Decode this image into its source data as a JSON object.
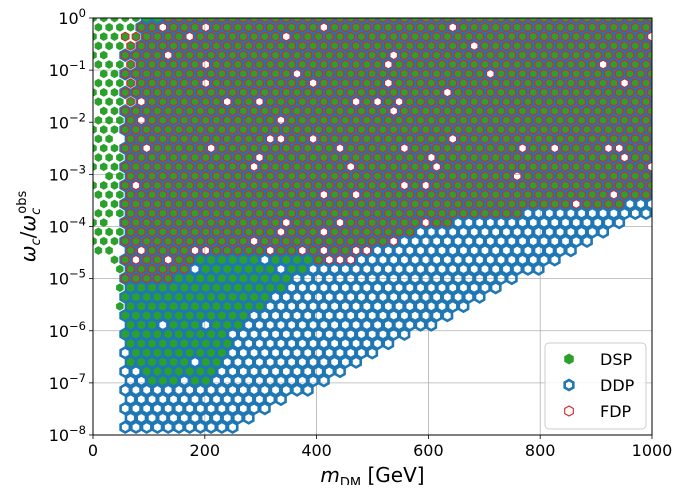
{
  "chart_data": {
    "type": "scatter",
    "subtype": "hexbin",
    "title": "",
    "xlabel": "m_DM [GeV]",
    "xlabel_parts": {
      "main": "m",
      "sub": "DM",
      "unit": " [GeV]"
    },
    "ylabel": "ω_c/ω_c^obs",
    "ylabel_parts": {
      "omega": "ω",
      "sub": "c",
      "slash": "/",
      "sup": "obs"
    },
    "xlim": [
      0,
      1000
    ],
    "ylim": [
      1e-08,
      1
    ],
    "yscale": "log",
    "grid": true,
    "legend_position": "lower-right",
    "x_ticks": [
      {
        "value": 0,
        "label": "0"
      },
      {
        "value": 200,
        "label": "200"
      },
      {
        "value": 400,
        "label": "400"
      },
      {
        "value": 600,
        "label": "600"
      },
      {
        "value": 800,
        "label": "800"
      },
      {
        "value": 1000,
        "label": "1000"
      }
    ],
    "y_ticks": [
      {
        "exp": 0,
        "base": "10",
        "sup": "0"
      },
      {
        "exp": -1,
        "base": "10",
        "sup": "−1"
      },
      {
        "exp": -2,
        "base": "10",
        "sup": "−2"
      },
      {
        "exp": -3,
        "base": "10",
        "sup": "−3"
      },
      {
        "exp": -4,
        "base": "10",
        "sup": "−4"
      },
      {
        "exp": -5,
        "base": "10",
        "sup": "−5"
      },
      {
        "exp": -6,
        "base": "10",
        "sup": "−6"
      },
      {
        "exp": -7,
        "base": "10",
        "sup": "−7"
      },
      {
        "exp": -8,
        "base": "10",
        "sup": "−8"
      }
    ],
    "series": [
      {
        "name": "DDP",
        "marker": "hollow-hexagon",
        "color": "#1f77b4",
        "region": {
          "x_range": [
            55,
            1000
          ],
          "top_boundary": [
            [
              55,
              0.7
            ],
            [
              70,
              0.01
            ],
            [
              80,
              1.0
            ],
            [
              1000,
              1.0
            ]
          ],
          "bottom_boundary": [
            [
              55,
              1e-08
            ],
            [
              230,
              1e-08
            ],
            [
              1000,
              0.0002
            ]
          ]
        }
      },
      {
        "name": "DSP",
        "marker": "filled-hexagon",
        "color": "#2ca02c",
        "region": {
          "x_range": [
            0,
            1000
          ],
          "top_boundary": [
            [
              0,
              1.0
            ],
            [
              1000,
              1.0
            ]
          ],
          "bottom_boundary": [
            [
              20,
              3e-05
            ],
            [
              40,
              1e-05
            ],
            [
              60,
              3e-07
            ],
            [
              100,
              1e-07
            ],
            [
              200,
              1e-07
            ],
            [
              300,
              3e-06
            ],
            [
              400,
              2e-05
            ],
            [
              600,
              0.0001
            ],
            [
              800,
              0.0002
            ],
            [
              1000,
              0.0003
            ]
          ]
        }
      },
      {
        "name": "FDP",
        "marker": "hollow-hexagon",
        "color": "#d62728",
        "region": {
          "x_range": [
            55,
            1000
          ],
          "top_boundary": [
            [
              55,
              0.5
            ],
            [
              130,
              1.0
            ],
            [
              1000,
              1.0
            ]
          ],
          "bottom_boundary": [
            [
              55,
              1e-05
            ],
            [
              150,
              1e-05
            ],
            [
              200,
              3e-05
            ],
            [
              300,
              3e-05
            ],
            [
              450,
              2e-05
            ],
            [
              600,
              0.0001
            ],
            [
              800,
              0.0002
            ],
            [
              1000,
              0.0003
            ]
          ]
        }
      }
    ]
  },
  "legend": {
    "items": [
      {
        "label": "DSP",
        "color": "#2ca02c",
        "style": "filled"
      },
      {
        "label": "DDP",
        "color": "#1f77b4",
        "style": "hollow"
      },
      {
        "label": "FDP",
        "color": "#d62728",
        "style": "hollow"
      }
    ]
  }
}
